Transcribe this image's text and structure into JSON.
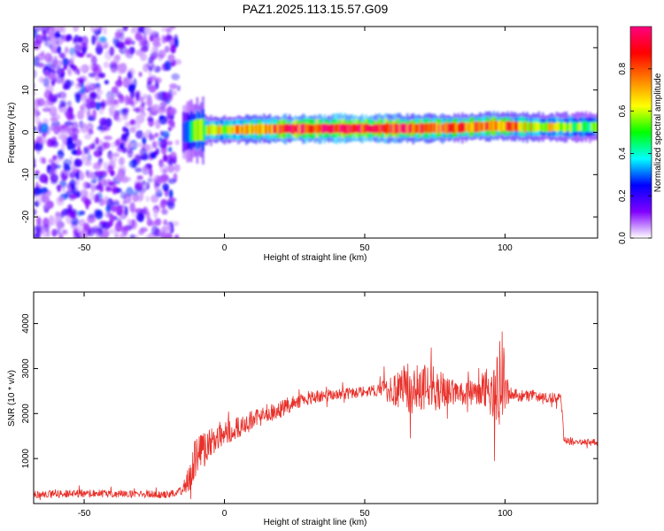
{
  "figure": {
    "title": "PAZ1.2025.113.15.57.G09"
  },
  "chart_data": [
    {
      "type": "heatmap",
      "title": "PAZ1.2025.113.15.57.G09",
      "xlabel": "Height of straight line (km)",
      "ylabel": "Frequency (Hz)",
      "xlim": [
        -68,
        133
      ],
      "ylim": [
        -25,
        25
      ],
      "x_ticks": [
        -50,
        0,
        50,
        100
      ],
      "y_ticks": [
        -20,
        -10,
        0,
        10,
        20
      ],
      "grid": false,
      "colorbar": {
        "label": "Normalized spectral amplitude",
        "range": [
          0,
          1
        ],
        "ticks": [
          0.0,
          0.2,
          0.4,
          0.6,
          0.8
        ],
        "tick_labels": [
          "0.0",
          "0.2",
          "0.4",
          "0.6",
          "0.8"
        ],
        "colormap": [
          "#ffffff",
          "#8000ff",
          "#0000ff",
          "#00ffff",
          "#00ff00",
          "#ffff00",
          "#ff8000",
          "#ff0000",
          "#ff0080"
        ]
      },
      "noise_region": {
        "x": [
          -68,
          -17
        ],
        "y": [
          -25,
          25
        ],
        "amplitude": [
          0.05,
          0.3
        ]
      },
      "signal_band": [
        {
          "x": -15,
          "y": 0.0,
          "amplitude": 0.25
        },
        {
          "x": -10,
          "y": 0.5,
          "amplitude": 0.55
        },
        {
          "x": 0,
          "y": 0.6,
          "amplitude": 0.7
        },
        {
          "x": 10,
          "y": 0.8,
          "amplitude": 0.75
        },
        {
          "x": 20,
          "y": 0.8,
          "amplitude": 0.9
        },
        {
          "x": 40,
          "y": 0.9,
          "amplitude": 1.0
        },
        {
          "x": 60,
          "y": 0.9,
          "amplitude": 0.95
        },
        {
          "x": 80,
          "y": 1.0,
          "amplitude": 0.8
        },
        {
          "x": 96,
          "y": 1.5,
          "amplitude": 0.85
        },
        {
          "x": 110,
          "y": 1.2,
          "amplitude": 0.65
        },
        {
          "x": 133,
          "y": 1.3,
          "amplitude": 0.5
        }
      ]
    },
    {
      "type": "line",
      "xlabel": "Height of straight line (km)",
      "ylabel": "SNR (10 * v/v)",
      "xlim": [
        -68,
        133
      ],
      "ylim": [
        0,
        4700
      ],
      "x_ticks": [
        -50,
        0,
        50,
        100
      ],
      "y_ticks": [
        1000,
        2000,
        3000,
        4000
      ],
      "grid": false,
      "series": [
        {
          "color": "#e8302a",
          "x": [
            -68,
            -50,
            -30,
            -20,
            -15,
            -12,
            -10,
            -8,
            -5,
            0,
            5,
            10,
            15,
            20,
            25,
            30,
            35,
            40,
            45,
            50,
            55,
            60,
            65,
            70,
            75,
            80,
            85,
            90,
            95,
            97,
            99,
            100,
            102,
            105,
            110,
            115,
            120,
            121,
            125,
            130,
            133
          ],
          "y": [
            200,
            220,
            210,
            200,
            300,
            650,
            1100,
            1200,
            1350,
            1550,
            1700,
            1850,
            2000,
            2100,
            2250,
            2350,
            2400,
            2420,
            2450,
            2480,
            2520,
            2600,
            2550,
            2600,
            2550,
            2500,
            2450,
            2480,
            2550,
            2500,
            3000,
            2500,
            2450,
            2400,
            2400,
            2350,
            2350,
            1400,
            1380,
            1350,
            1350
          ],
          "noise_amplitude": [
            80,
            90,
            80,
            80,
            100,
            350,
            450,
            350,
            300,
            280,
            250,
            220,
            200,
            200,
            170,
            150,
            140,
            120,
            120,
            120,
            130,
            450,
            550,
            600,
            500,
            300,
            250,
            300,
            600,
            800,
            1200,
            400,
            150,
            130,
            120,
            110,
            110,
            90,
            80,
            80,
            80
          ]
        }
      ]
    }
  ]
}
